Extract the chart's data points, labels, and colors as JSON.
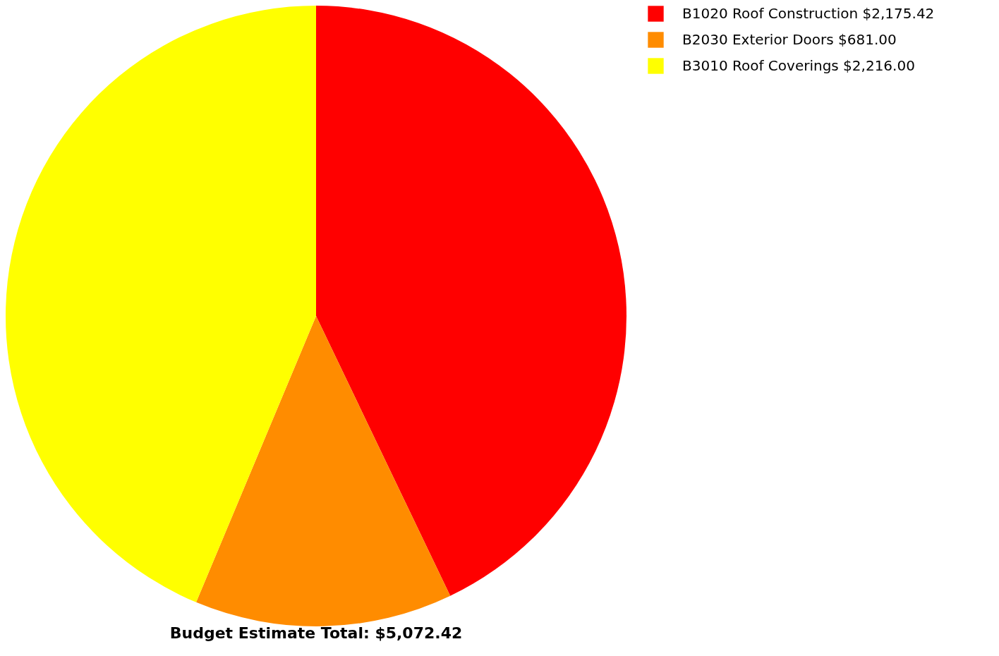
{
  "chart_data": {
    "type": "pie",
    "title": "Budget Estimate Total: $5,072.42",
    "categories": [
      "B1020 Roof Construction $2,175.42",
      "B2030 Exterior Doors $681.00",
      "B3010 Roof Coverings $2,216.00"
    ],
    "values": [
      2175.42,
      681.0,
      2216.0
    ],
    "colors": [
      "#ff0000",
      "#ff8c00",
      "#ffff00"
    ],
    "legend": "right"
  }
}
